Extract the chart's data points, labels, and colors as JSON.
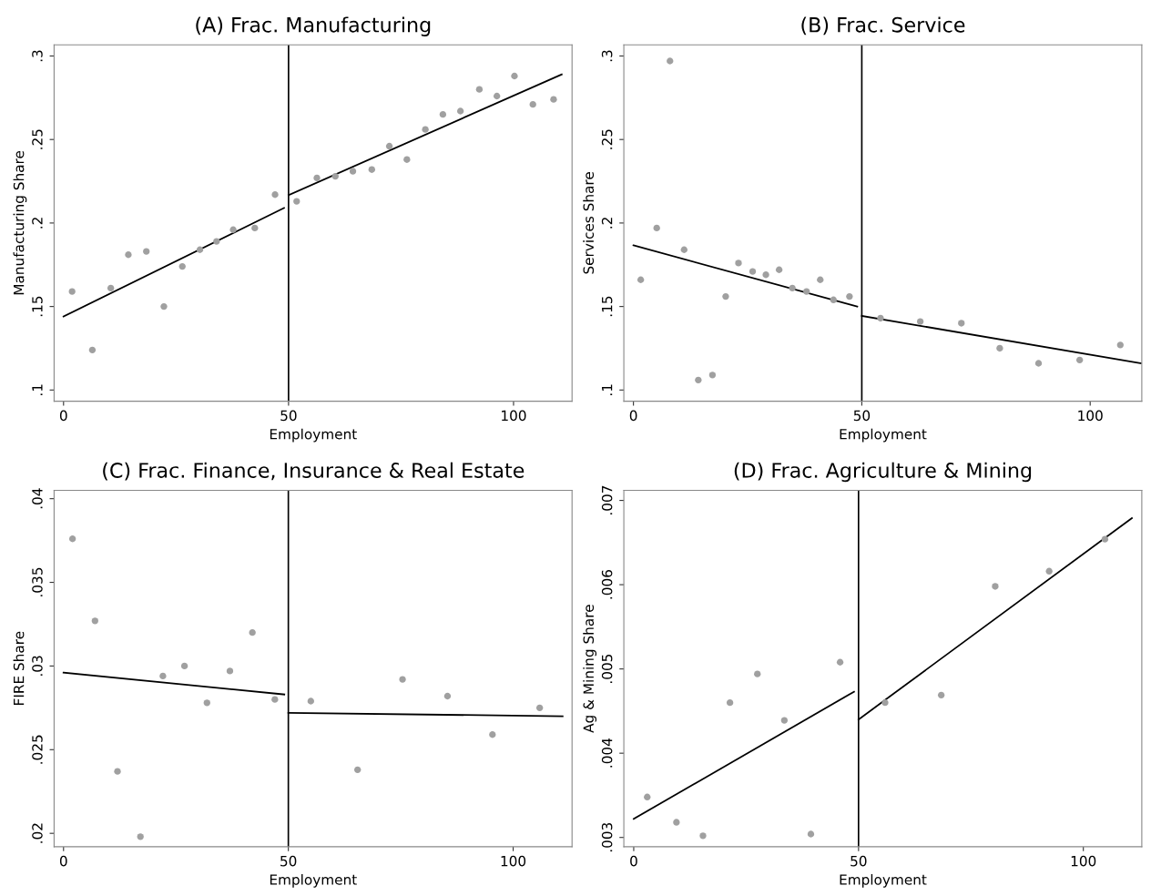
{
  "chart_data": [
    {
      "type": "scatter",
      "title": "(A) Frac. Manufacturing",
      "xlabel": "Employment",
      "ylabel": "Manufacturing Share",
      "xlim": [
        -2.1,
        113
      ],
      "ylim": [
        0.0933,
        0.3067
      ],
      "xticks": [
        0,
        50,
        100
      ],
      "yticks": [
        {
          "value": 0.1,
          "label": ".1"
        },
        {
          "value": 0.15,
          "label": ".15"
        },
        {
          "value": 0.2,
          "label": ".2"
        },
        {
          "value": 0.25,
          "label": ".25"
        },
        {
          "value": 0.3,
          "label": ".3"
        }
      ],
      "grid": false,
      "marker": "circle",
      "ref_lines": [
        {
          "axis": "x",
          "value": 50,
          "color": "#000000"
        }
      ],
      "series": [
        {
          "type": "scatter",
          "color": "#a0a0a0",
          "x": [
            1.9,
            6.4,
            10.5,
            14.4,
            18.4,
            22.3,
            26.4,
            30.3,
            34,
            37.7,
            42.5,
            47,
            51.8,
            56.3,
            60.4,
            64.3,
            68.5,
            72.4,
            76.3,
            80.4,
            84.3,
            88.2,
            92.4,
            96.3,
            100.2,
            104.3,
            108.9
          ],
          "values": [
            0.159,
            0.124,
            0.161,
            0.181,
            0.183,
            0.15,
            0.174,
            0.184,
            0.189,
            0.196,
            0.197,
            0.217,
            0.213,
            0.227,
            0.228,
            0.231,
            0.232,
            0.246,
            0.238,
            0.256,
            0.265,
            0.267,
            0.28,
            0.276,
            0.288,
            0.271,
            0.274
          ]
        },
        {
          "type": "line",
          "color": "#000000",
          "marker": "none",
          "x": [
            0,
            49
          ],
          "values": [
            0.144,
            0.209
          ]
        },
        {
          "type": "line",
          "color": "#000000",
          "marker": "none",
          "x": [
            50,
            110.7
          ],
          "values": [
            0.2167,
            0.289
          ]
        }
      ]
    },
    {
      "type": "scatter",
      "title": "(B) Frac. Service",
      "xlabel": "Employment",
      "ylabel": "Services Share",
      "xlim": [
        -2.1,
        111.3
      ],
      "ylim": [
        0.0933,
        0.3067
      ],
      "xticks": [
        0,
        50,
        100
      ],
      "yticks": [
        {
          "value": 0.1,
          "label": ".1"
        },
        {
          "value": 0.15,
          "label": ".15"
        },
        {
          "value": 0.2,
          "label": ".2"
        },
        {
          "value": 0.25,
          "label": ".25"
        },
        {
          "value": 0.3,
          "label": ".3"
        }
      ],
      "grid": false,
      "marker": "circle",
      "ref_lines": [
        {
          "axis": "x",
          "value": 50,
          "color": "#000000"
        }
      ],
      "series": [
        {
          "type": "scatter",
          "color": "#a0a0a0",
          "x": [
            1.6,
            5.1,
            8,
            11.1,
            14.2,
            17.3,
            20.2,
            23,
            26.1,
            29,
            31.9,
            34.8,
            37.9,
            40.9,
            43.8,
            47.3,
            54.1,
            62.8,
            71.8,
            80.2,
            88.7,
            97.7,
            106.6
          ],
          "values": [
            0.166,
            0.197,
            0.297,
            0.184,
            0.106,
            0.109,
            0.156,
            0.176,
            0.171,
            0.169,
            0.172,
            0.161,
            0.159,
            0.166,
            0.154,
            0.156,
            0.143,
            0.141,
            0.14,
            0.125,
            0.116,
            0.118,
            0.127
          ]
        },
        {
          "type": "line",
          "color": "#000000",
          "marker": "none",
          "x": [
            0,
            49
          ],
          "values": [
            0.1866,
            0.15
          ]
        },
        {
          "type": "line",
          "color": "#000000",
          "marker": "none",
          "x": [
            50,
            111.1
          ],
          "values": [
            0.1444,
            0.116
          ]
        }
      ]
    },
    {
      "type": "scatter",
      "title": "(C) Frac. Finance, Insurance & Real Estate",
      "xlabel": "Employment",
      "ylabel": "FIRE Share",
      "xlim": [
        -2.1,
        113.1
      ],
      "ylim": [
        0.0192,
        0.0405
      ],
      "xticks": [
        0,
        50,
        100
      ],
      "yticks": [
        {
          "value": 0.02,
          "label": ".02"
        },
        {
          "value": 0.025,
          "label": ".025"
        },
        {
          "value": 0.03,
          "label": ".03"
        },
        {
          "value": 0.035,
          "label": ".035"
        },
        {
          "value": 0.04,
          "label": ".04"
        }
      ],
      "grid": false,
      "marker": "circle",
      "ref_lines": [
        {
          "axis": "x",
          "value": 50,
          "color": "#000000"
        }
      ],
      "series": [
        {
          "type": "scatter",
          "color": "#a0a0a0",
          "x": [
            2,
            7,
            12,
            17.1,
            22.1,
            26.9,
            31.9,
            37,
            42,
            47,
            55,
            65.4,
            75.4,
            85.4,
            95.4,
            105.9
          ],
          "values": [
            0.0376,
            0.0327,
            0.0237,
            0.0198,
            0.0294,
            0.03,
            0.0278,
            0.0297,
            0.032,
            0.028,
            0.0279,
            0.0238,
            0.0292,
            0.0282,
            0.0259,
            0.0275
          ]
        },
        {
          "type": "line",
          "color": "#000000",
          "marker": "none",
          "x": [
            0,
            49.1
          ],
          "values": [
            0.0296,
            0.0283
          ]
        },
        {
          "type": "line",
          "color": "#000000",
          "marker": "none",
          "x": [
            50,
            111
          ],
          "values": [
            0.0272,
            0.027
          ]
        }
      ]
    },
    {
      "type": "scatter",
      "title": "(D) Frac. Agriculture & Mining",
      "xlabel": "Employment",
      "ylabel": "Ag & Mining Share",
      "xlim": [
        -2.2,
        113
      ],
      "ylim": [
        0.00289,
        0.00712
      ],
      "xticks": [
        0,
        50,
        100
      ],
      "yticks": [
        {
          "value": 0.003,
          "label": ".003"
        },
        {
          "value": 0.004,
          "label": ".004"
        },
        {
          "value": 0.005,
          "label": ".005"
        },
        {
          "value": 0.006,
          "label": ".006"
        },
        {
          "value": 0.007,
          "label": ".007"
        }
      ],
      "grid": false,
      "marker": "circle",
      "ref_lines": [
        {
          "axis": "x",
          "value": 50,
          "color": "#000000"
        }
      ],
      "series": [
        {
          "type": "scatter",
          "color": "#a0a0a0",
          "x": [
            3,
            9.5,
            15.4,
            21.4,
            27.5,
            33.5,
            39.4,
            45.9,
            55.9,
            68.4,
            80.4,
            92.4,
            104.8
          ],
          "values": [
            0.00348,
            0.00318,
            0.00302,
            0.0046,
            0.00494,
            0.00439,
            0.00304,
            0.00508,
            0.0046,
            0.00469,
            0.00598,
            0.00616,
            0.00654
          ]
        },
        {
          "type": "line",
          "color": "#000000",
          "marker": "none",
          "x": [
            0,
            49
          ],
          "values": [
            0.00322,
            0.00473
          ]
        },
        {
          "type": "line",
          "color": "#000000",
          "marker": "none",
          "x": [
            50,
            110.8
          ],
          "values": [
            0.0044,
            0.00679
          ]
        }
      ]
    }
  ]
}
